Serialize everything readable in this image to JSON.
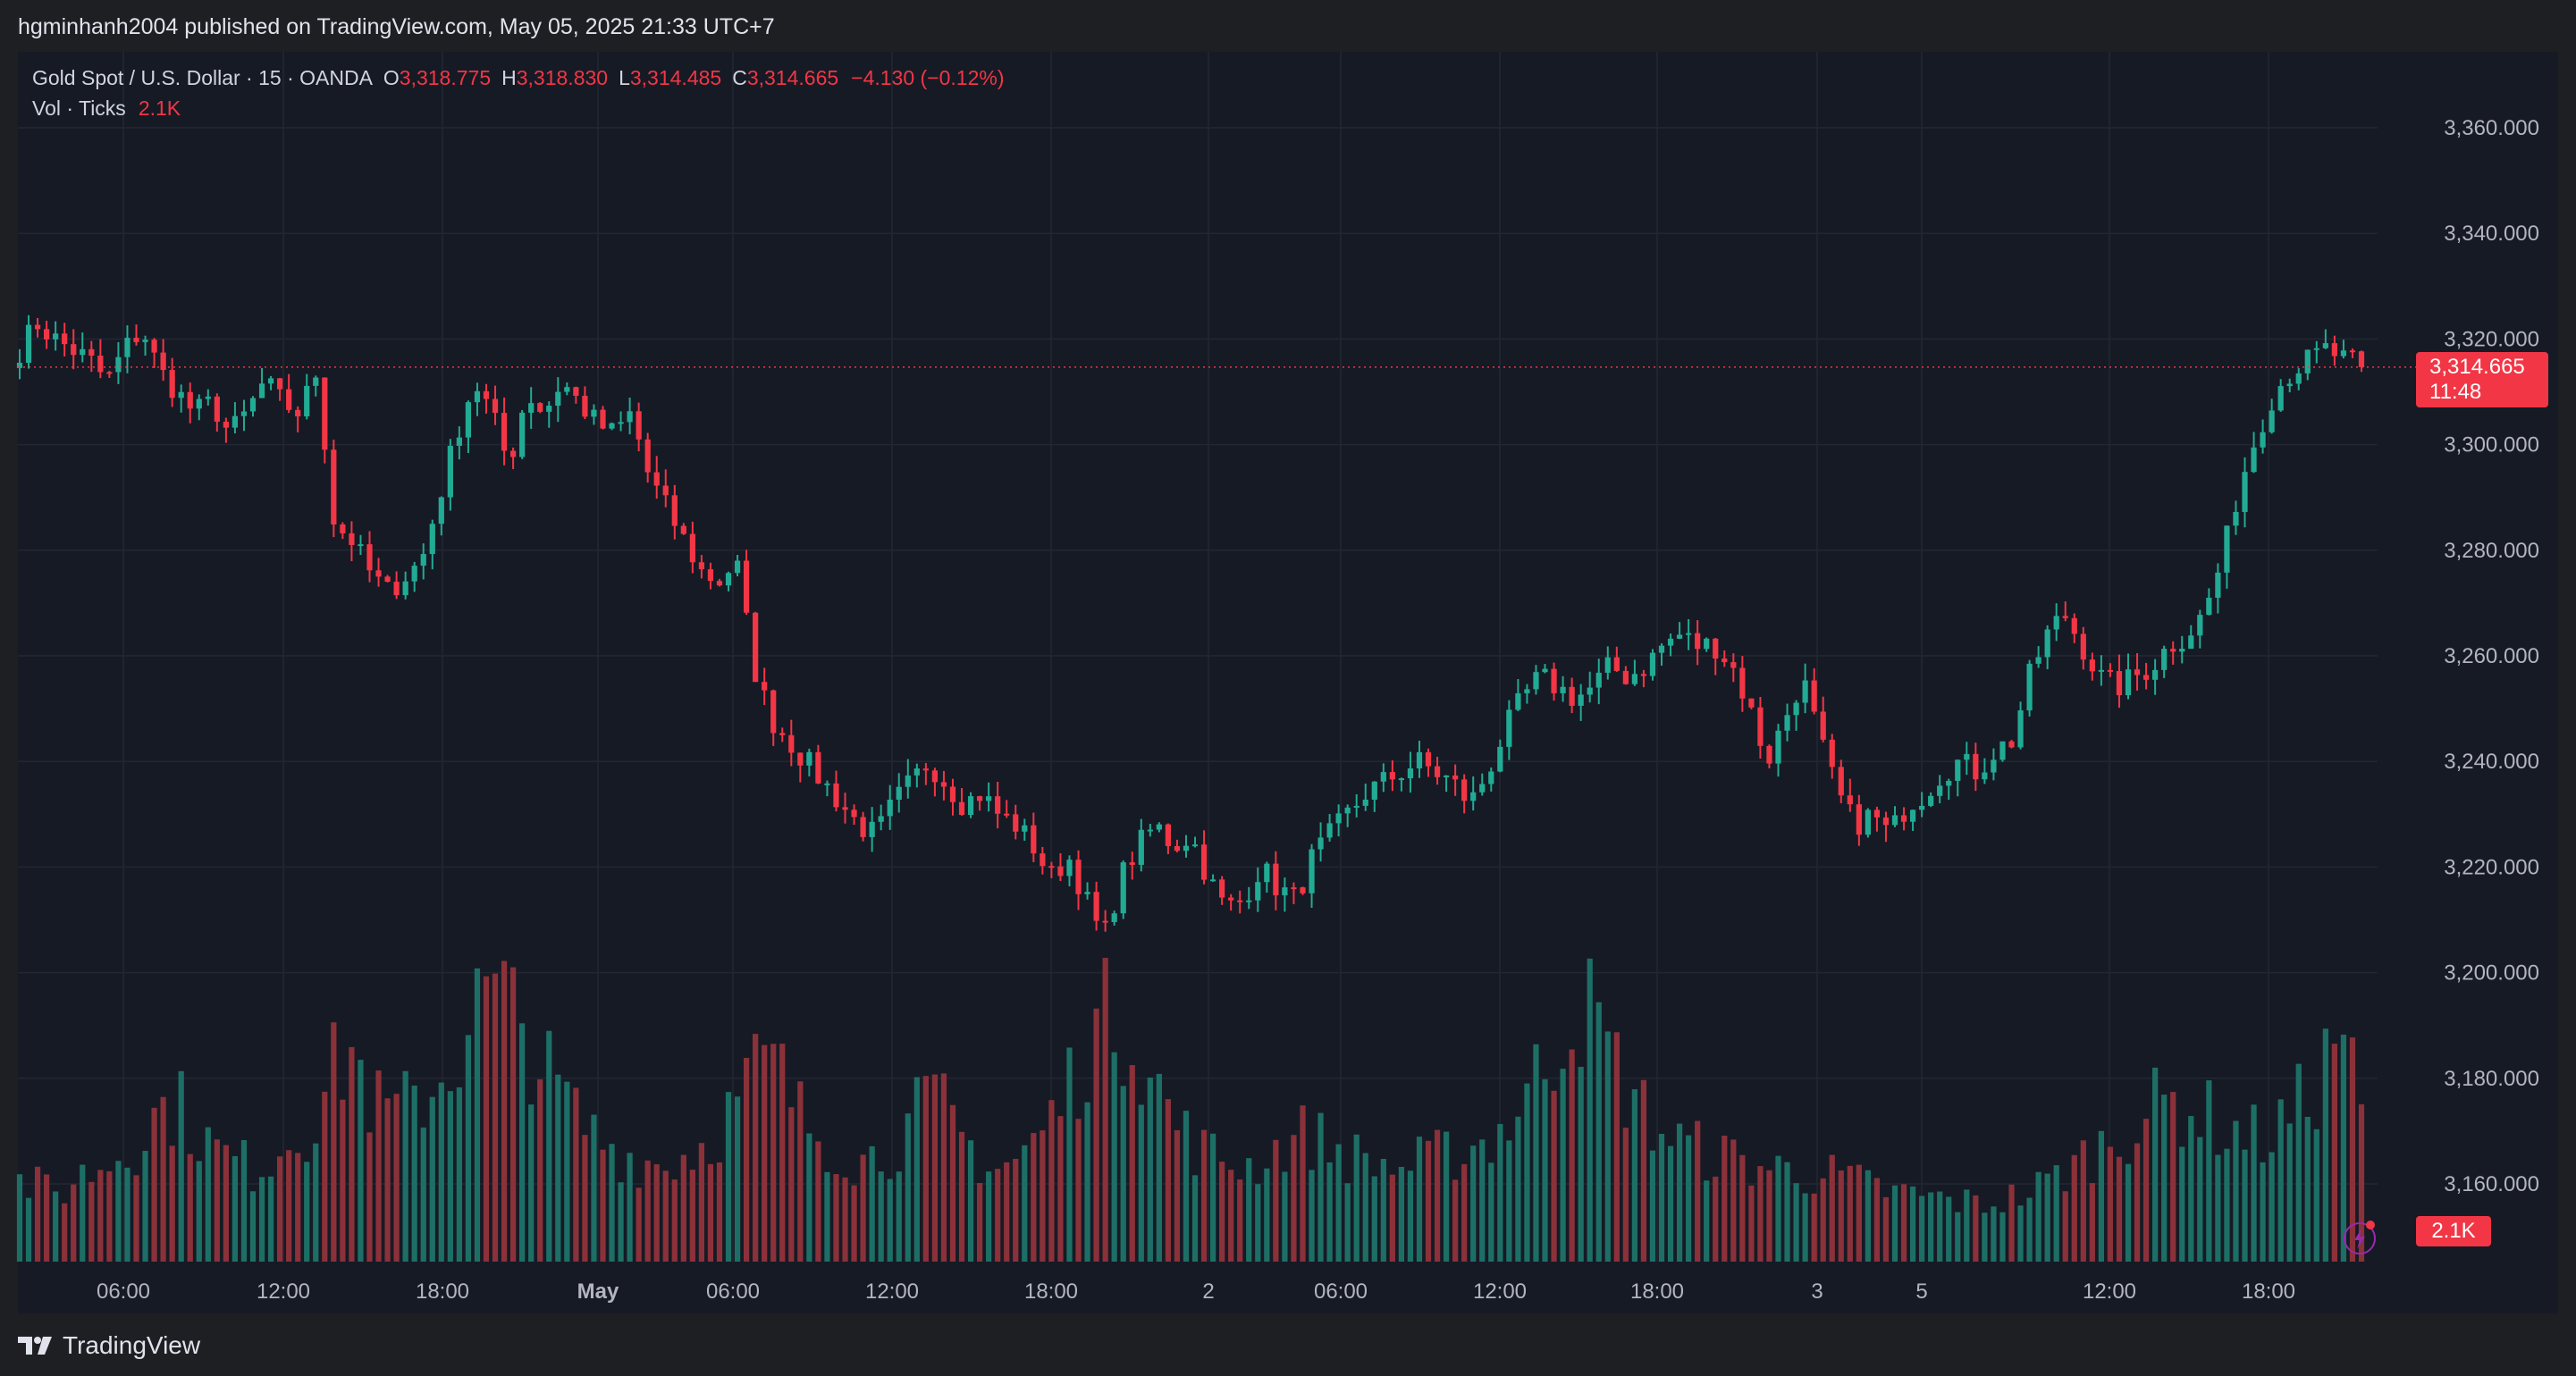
{
  "header": {
    "published": "hgminhanh2004 published on TradingView.com, May 05, 2025 21:33 UTC+7"
  },
  "legend": {
    "symbol": "Gold Spot / U.S. Dollar · 15 · OANDA",
    "o_label": "O",
    "o_value": "3,318.775",
    "h_label": "H",
    "h_value": "3,318.830",
    "l_label": "L",
    "l_value": "3,314.485",
    "c_label": "C",
    "c_value": "3,314.665",
    "change": "−4.130 (−0.12%)",
    "vol_label": "Vol · Ticks",
    "vol_value": "2.1K"
  },
  "price_tag": {
    "price": "3,314.665",
    "countdown": "11:48"
  },
  "vol_tag": "2.1K",
  "brand": "TradingView",
  "colors": {
    "up": "#22ab94",
    "down": "#f23645",
    "background": "#161a25",
    "grid": "#232733"
  },
  "chart_data": {
    "type": "candlestick",
    "y_ticks": [
      "3,160.000",
      "3,180.000",
      "3,200.000",
      "3,220.000",
      "3,240.000",
      "3,260.000",
      "3,280.000",
      "3,300.000",
      "3,320.000",
      "3,340.000",
      "3,360.000"
    ],
    "y_tick_values": [
      3160,
      3180,
      3200,
      3220,
      3240,
      3260,
      3280,
      3300,
      3320,
      3340,
      3360
    ],
    "x_ticks": [
      "06:00",
      "12:00",
      "18:00",
      "May",
      "06:00",
      "12:00",
      "18:00",
      "2",
      "06:00",
      "12:00",
      "18:00",
      "3",
      "5",
      "12:00",
      "18:00"
    ],
    "last_price": 3314.665,
    "close_path": [
      3318,
      3323,
      3320,
      3318,
      3316,
      3312,
      3318,
      3322,
      3314,
      3310,
      3306,
      3308,
      3302,
      3306,
      3312,
      3308,
      3306,
      3314,
      3285,
      3282,
      3276,
      3272,
      3275,
      3278,
      3290,
      3302,
      3312,
      3306,
      3296,
      3310,
      3306,
      3312,
      3308,
      3304,
      3302,
      3306,
      3294,
      3288,
      3282,
      3276,
      3274,
      3278,
      3258,
      3248,
      3244,
      3240,
      3236,
      3232,
      3228,
      3226,
      3232,
      3236,
      3240,
      3236,
      3232,
      3234,
      3230,
      3228,
      3224,
      3218,
      3222,
      3214,
      3206,
      3218,
      3224,
      3228,
      3224,
      3226,
      3218,
      3212,
      3214,
      3220,
      3216,
      3214,
      3222,
      3226,
      3230,
      3234,
      3236,
      3238,
      3240,
      3238,
      3236,
      3232,
      3238,
      3246,
      3252,
      3256,
      3254,
      3252,
      3254,
      3258,
      3256,
      3258,
      3262,
      3264,
      3262,
      3262,
      3258,
      3250,
      3240,
      3248,
      3256,
      3244,
      3234,
      3228,
      3230,
      3226,
      3232,
      3234,
      3238,
      3240,
      3238,
      3242,
      3244,
      3256,
      3264,
      3268,
      3262,
      3256,
      3254,
      3256,
      3258,
      3262,
      3264,
      3268,
      3278,
      3292,
      3302,
      3310,
      3314,
      3316,
      3318,
      3316,
      3314.665
    ],
    "volume_path": [
      0.3,
      0.28,
      0.25,
      0.32,
      0.35,
      0.4,
      0.45,
      0.55,
      0.6,
      0.5,
      0.42,
      0.38,
      0.35,
      0.4,
      0.48,
      0.52,
      0.7,
      0.8,
      0.6,
      0.55,
      0.58,
      0.65,
      0.72,
      0.9,
      1.0,
      0.95,
      0.85,
      0.7,
      0.6,
      0.5,
      0.45,
      0.4,
      0.38,
      0.36,
      0.4,
      0.44,
      0.52,
      0.62,
      0.75,
      0.7,
      0.55,
      0.48,
      0.42,
      0.38,
      0.4,
      0.45,
      0.55,
      0.6,
      0.5,
      0.4,
      0.35,
      0.38,
      0.45,
      0.55,
      0.7,
      0.85,
      0.95,
      0.88,
      0.7,
      0.55,
      0.45,
      0.4,
      0.38,
      0.36,
      0.4,
      0.45,
      0.48,
      0.44,
      0.4,
      0.38,
      0.36,
      0.35,
      0.38,
      0.4,
      0.42,
      0.45,
      0.5,
      0.6,
      0.72,
      0.88,
      0.98,
      0.85,
      0.7,
      0.58,
      0.5,
      0.45,
      0.42,
      0.4,
      0.38,
      0.36,
      0.35,
      0.34,
      0.33,
      0.32,
      0.3,
      0.28,
      0.26,
      0.25,
      0.24,
      0.23,
      0.22,
      0.22,
      0.24,
      0.26,
      0.3,
      0.35,
      0.4,
      0.45,
      0.5,
      0.55,
      0.6,
      0.58,
      0.55,
      0.5,
      0.48,
      0.46,
      0.52,
      0.6,
      0.7,
      0.95,
      0.55
    ]
  }
}
